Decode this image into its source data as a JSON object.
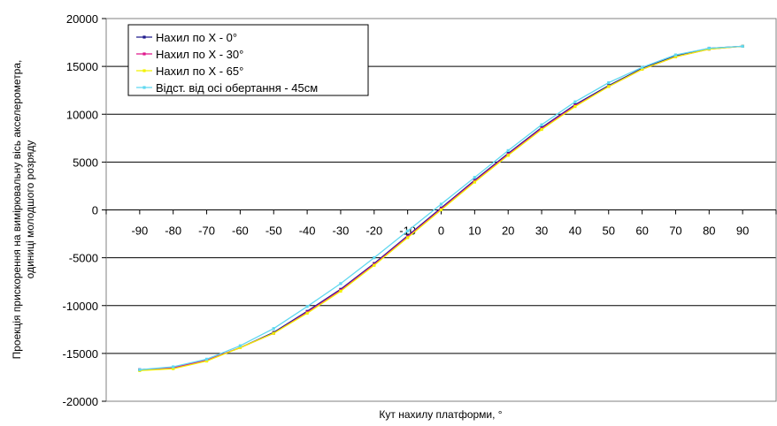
{
  "chart_data": {
    "type": "line",
    "title": "",
    "xlabel": "Кут нахилу платформи, °",
    "ylabel_lines": [
      "Проекція прискорення на вимірювальну вісь акселерометра,",
      "одиниці молодшого розряду"
    ],
    "xlim": [
      -90,
      90
    ],
    "ylim": [
      -20000,
      20000
    ],
    "x_ticks": [
      -90,
      -80,
      -70,
      -60,
      -50,
      -40,
      -30,
      -20,
      -10,
      0,
      10,
      20,
      30,
      40,
      50,
      60,
      70,
      80,
      90
    ],
    "y_ticks": [
      -20000,
      -15000,
      -10000,
      -5000,
      0,
      5000,
      10000,
      15000,
      20000
    ],
    "grid": "horizontal",
    "legend_position": "top-left",
    "x": [
      -90,
      -80,
      -70,
      -60,
      -50,
      -40,
      -30,
      -20,
      -10,
      0,
      10,
      20,
      30,
      40,
      50,
      60,
      70,
      80,
      90
    ],
    "series": [
      {
        "name": "Нахил по X - 0°",
        "color": "#1f1a8c",
        "values": [
          -16700,
          -16500,
          -15700,
          -14400,
          -12800,
          -10600,
          -8300,
          -5600,
          -2700,
          200,
          3100,
          5900,
          8600,
          11000,
          13000,
          14800,
          16100,
          16900,
          17100
        ]
      },
      {
        "name": "Нахил по X - 30°",
        "color": "#e0188c",
        "values": [
          -16700,
          -16500,
          -15700,
          -14400,
          -12900,
          -10700,
          -8400,
          -5700,
          -2800,
          100,
          3000,
          5800,
          8500,
          10900,
          12900,
          14700,
          16000,
          16800,
          17100
        ]
      },
      {
        "name": "Нахил по X - 65°",
        "color": "#f2f200",
        "values": [
          -16800,
          -16600,
          -15800,
          -14400,
          -12900,
          -10800,
          -8500,
          -5800,
          -2900,
          0,
          2900,
          5700,
          8400,
          10800,
          12900,
          14700,
          16000,
          16800,
          17100
        ]
      },
      {
        "name": "Відст. від осі обертання - 45см",
        "color": "#5fd8f0",
        "values": [
          -16700,
          -16400,
          -15600,
          -14200,
          -12400,
          -10100,
          -7700,
          -5000,
          -2200,
          600,
          3400,
          6200,
          8900,
          11300,
          13300,
          14900,
          16200,
          16900,
          17100
        ]
      }
    ]
  }
}
